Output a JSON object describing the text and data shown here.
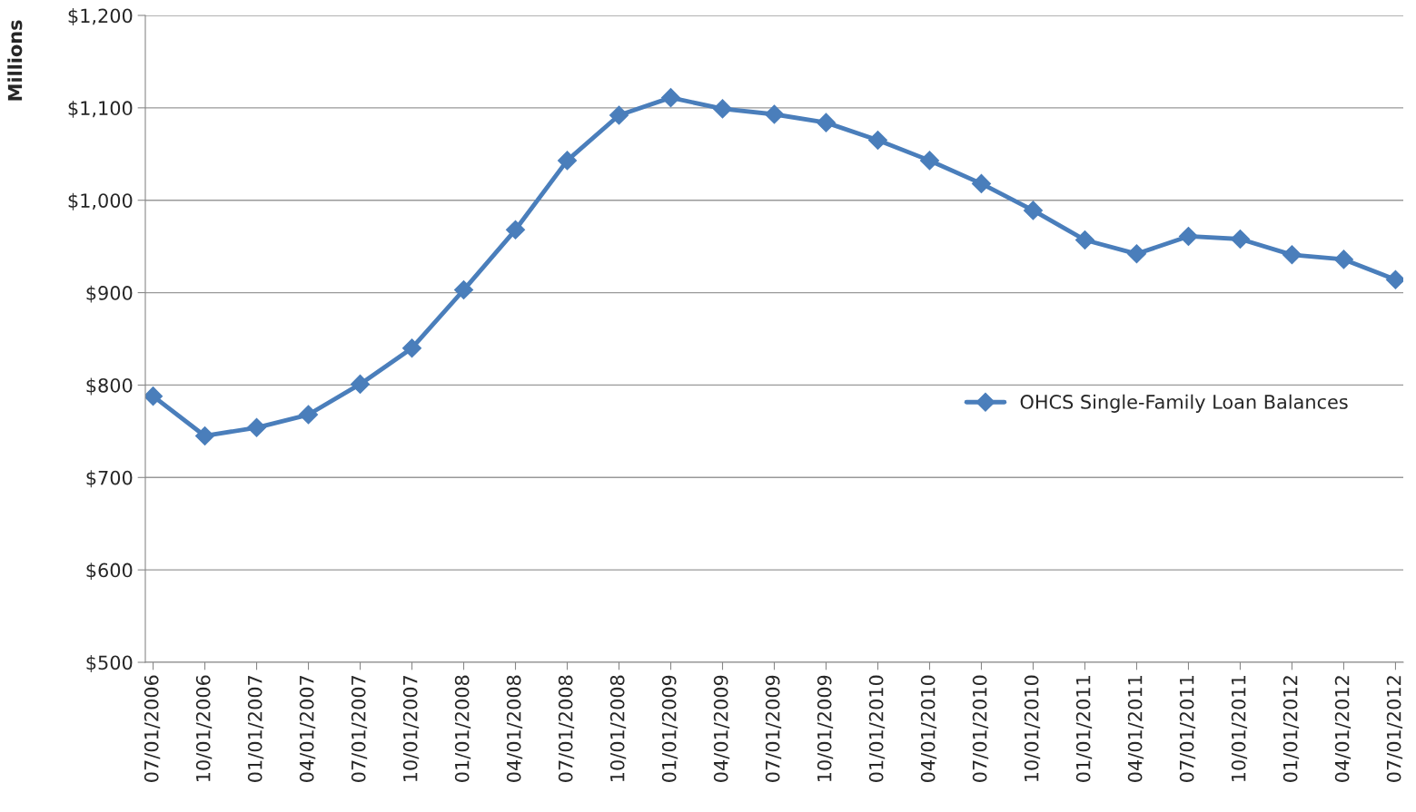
{
  "chart_data": {
    "type": "line",
    "ylabel": "Millions",
    "categories": [
      "07/01/2006",
      "10/01/2006",
      "01/01/2007",
      "04/01/2007",
      "07/01/2007",
      "10/01/2007",
      "01/01/2008",
      "04/01/2008",
      "07/01/2008",
      "10/01/2008",
      "01/01/2009",
      "04/01/2009",
      "07/01/2009",
      "10/01/2009",
      "01/01/2010",
      "04/01/2010",
      "07/01/2010",
      "10/01/2010",
      "01/01/2011",
      "04/01/2011",
      "07/01/2011",
      "10/01/2011",
      "01/01/2012",
      "04/01/2012",
      "07/01/2012"
    ],
    "series": [
      {
        "name": "OHCS Single-Family Loan Balances",
        "color": "#4a7ebb",
        "values": [
          788,
          745,
          754,
          768,
          801,
          840,
          903,
          968,
          1043,
          1092,
          1111,
          1099,
          1093,
          1084,
          1065,
          1043,
          1018,
          989,
          957,
          942,
          961,
          958,
          941,
          936,
          914
        ]
      }
    ],
    "ylim": [
      500,
      1200
    ],
    "yticks": [
      {
        "value": 500,
        "label": "$500"
      },
      {
        "value": 600,
        "label": "$600"
      },
      {
        "value": 700,
        "label": "$700"
      },
      {
        "value": 800,
        "label": "$800"
      },
      {
        "value": 900,
        "label": "$900"
      },
      {
        "value": 1000,
        "label": "$1,000"
      },
      {
        "value": 1100,
        "label": "$1,100"
      },
      {
        "value": 1200,
        "label": "$1,200"
      }
    ],
    "grid": "y",
    "legend": "right",
    "marker": "diamond",
    "line_style": "solid"
  }
}
